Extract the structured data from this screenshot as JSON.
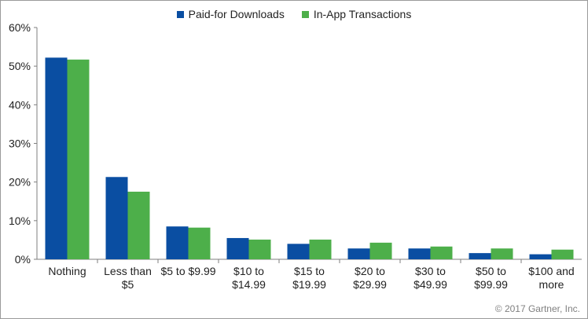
{
  "chart_data": {
    "type": "bar",
    "categories": [
      [
        "Nothing"
      ],
      [
        "Less than",
        "$5"
      ],
      [
        "$5 to $9.99"
      ],
      [
        "$10 to",
        "$14.99"
      ],
      [
        "$15 to",
        "$19.99"
      ],
      [
        "$20 to",
        "$29.99"
      ],
      [
        "$30 to",
        "$49.99"
      ],
      [
        "$50 to",
        "$99.99"
      ],
      [
        "$100 and",
        "more"
      ]
    ],
    "series": [
      {
        "name": "Paid-for Downloads",
        "color": "#0a4ea2",
        "values": [
          52.2,
          21.3,
          8.5,
          5.5,
          4.0,
          2.8,
          2.8,
          1.6,
          1.3
        ]
      },
      {
        "name": "In-App Transactions",
        "color": "#4daf4a",
        "values": [
          51.7,
          17.5,
          8.2,
          5.1,
          5.1,
          4.3,
          3.3,
          2.8,
          2.5
        ]
      }
    ],
    "yticks": [
      "0%",
      "10%",
      "20%",
      "30%",
      "40%",
      "50%",
      "60%"
    ],
    "ylim": [
      0,
      60
    ],
    "grid": false,
    "legend": "top-center"
  },
  "copyright": "© 2017 Gartner, Inc."
}
